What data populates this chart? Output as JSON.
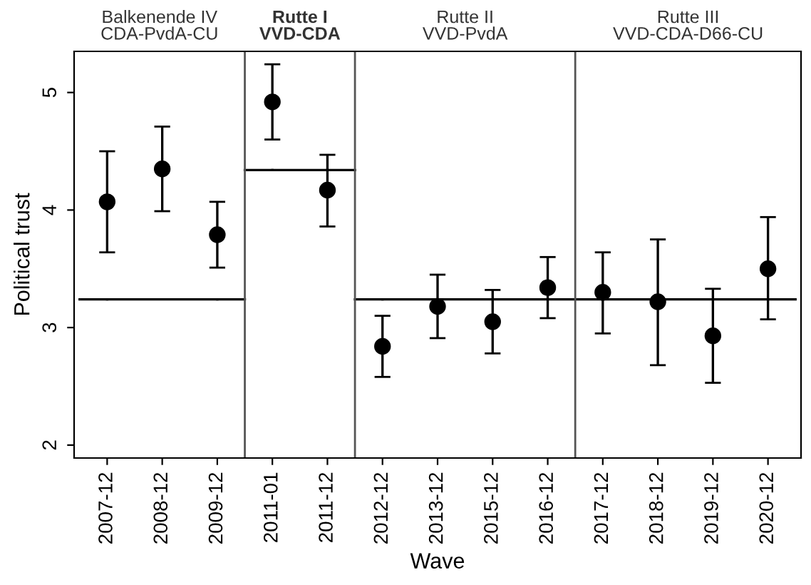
{
  "chart_data": {
    "type": "scatter",
    "xlabel": "Wave",
    "ylabel": "Political trust",
    "categories": [
      "2007-12",
      "2008-12",
      "2009-12",
      "2011-01",
      "2011-12",
      "2012-12",
      "2013-12",
      "2015-12",
      "2016-12",
      "2017-12",
      "2018-12",
      "2019-12",
      "2020-12"
    ],
    "series": [
      {
        "color": "#000000",
        "marker": "circle",
        "values": [
          4.07,
          4.35,
          3.79,
          4.92,
          4.17,
          2.84,
          3.18,
          3.05,
          3.34,
          3.3,
          3.22,
          2.93,
          3.5
        ],
        "errors": [
          [
            3.64,
            4.5
          ],
          [
            3.99,
            4.71
          ],
          [
            3.51,
            4.07
          ],
          [
            4.6,
            5.24
          ],
          [
            3.86,
            4.47
          ],
          [
            2.58,
            3.1
          ],
          [
            2.91,
            3.45
          ],
          [
            2.78,
            3.32
          ],
          [
            3.08,
            3.6
          ],
          [
            2.95,
            3.64
          ],
          [
            2.68,
            3.75
          ],
          [
            2.53,
            3.33
          ],
          [
            3.07,
            3.94
          ]
        ]
      },
      {
        "type": "line",
        "color": "#000000",
        "values": [
          3.24,
          3.24,
          3.24,
          null,
          null,
          null,
          null,
          null,
          null,
          null,
          null,
          null,
          null
        ]
      },
      {
        "type": "line",
        "color": "#000000",
        "values": [
          null,
          null,
          null,
          4.34,
          4.34,
          null,
          null,
          null,
          null,
          null,
          null,
          null,
          null
        ]
      },
      {
        "type": "line",
        "color": "#000000",
        "values": [
          null,
          null,
          null,
          null,
          null,
          3.24,
          3.24,
          3.24,
          3.24,
          3.24,
          3.24,
          3.24,
          3.24
        ]
      }
    ],
    "annotations": [
      "Balkenende IV\nCDA-PvdA-CU",
      "Rutte I\nVVD-CDA",
      "Rutte II\nVVD-PvdA",
      "Rutte III\nVVD-CDA-D66-CU"
    ],
    "ylim": [
      1.89,
      5.35
    ],
    "yticks": [
      2,
      3,
      4,
      5
    ],
    "grid": false
  }
}
